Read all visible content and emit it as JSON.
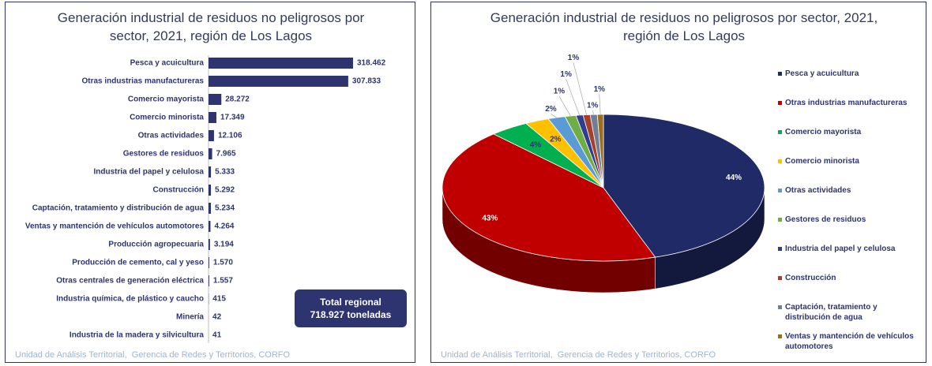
{
  "chart_data": [
    {
      "type": "bar",
      "orientation": "horizontal",
      "title": "Generación industrial de residuos no peligrosos por sector, 2021, región de Los Lagos",
      "categories": [
        "Pesca y acuicultura",
        "Otras industrias manufactureras",
        "Comercio mayorista",
        "Comercio minorista",
        "Otras actividades",
        "Gestores de residuos",
        "Industria del papel y celulosa",
        "Construcción",
        "Captación, tratamiento y distribución de agua",
        "Ventas y mantención de vehículos automotores",
        "Producción agropecuaria",
        "Producción de cemento, cal y yeso",
        "Otras centrales de generación eléctrica",
        "Industria química, de plástico y caucho",
        "Minería",
        "Industria de la madera y silvicultura"
      ],
      "values": [
        318462,
        307833,
        28272,
        17349,
        12106,
        7965,
        5333,
        5292,
        5234,
        4264,
        3194,
        1570,
        1557,
        415,
        42,
        41
      ],
      "value_labels": [
        "318.462",
        "307.833",
        "28.272",
        "17.349",
        "12.106",
        "7.965",
        "5.333",
        "5.292",
        "5.234",
        "4.264",
        "3.194",
        "1.570",
        "1.557",
        "415",
        "42",
        "41"
      ],
      "color": "#2e3470",
      "annotation": "Total regional\n718.927 toneladas",
      "footer": "Unidad de Análisis Territorial,  Gerencia de Redes y Territorios, CORFO"
    },
    {
      "type": "pie",
      "style": "3d",
      "title": "Generación industrial de residuos no peligrosos por sector, 2021, región de Los Lagos",
      "categories": [
        "Pesca y acuicultura",
        "Otras industrias manufactureras",
        "Comercio mayorista",
        "Comercio minorista",
        "Otras actividades",
        "Gestores de residuos",
        "Industria del papel y celulosa",
        "Construcción",
        "Captación, tratamiento y distribución de agua",
        "Ventas y mantención de vehículos automotores"
      ],
      "values": [
        44.3,
        42.8,
        3.9,
        2.4,
        1.7,
        1.1,
        0.7,
        0.7,
        0.7,
        0.6
      ],
      "value_labels": [
        "44%",
        "43%",
        "4%",
        "2%",
        "2%",
        "1%",
        "1%",
        "1%",
        "1%",
        "1%"
      ],
      "colors": [
        "#1f2a66",
        "#c00000",
        "#00b050",
        "#ffc000",
        "#5b9bd5",
        "#70ad47",
        "#2f3e8f",
        "#a5402a",
        "#6f7f95",
        "#9c6d1a"
      ],
      "legend": "right",
      "footer": "Unidad de Análisis Territorial,  Gerencia de Redes y Territorios, CORFO"
    }
  ]
}
